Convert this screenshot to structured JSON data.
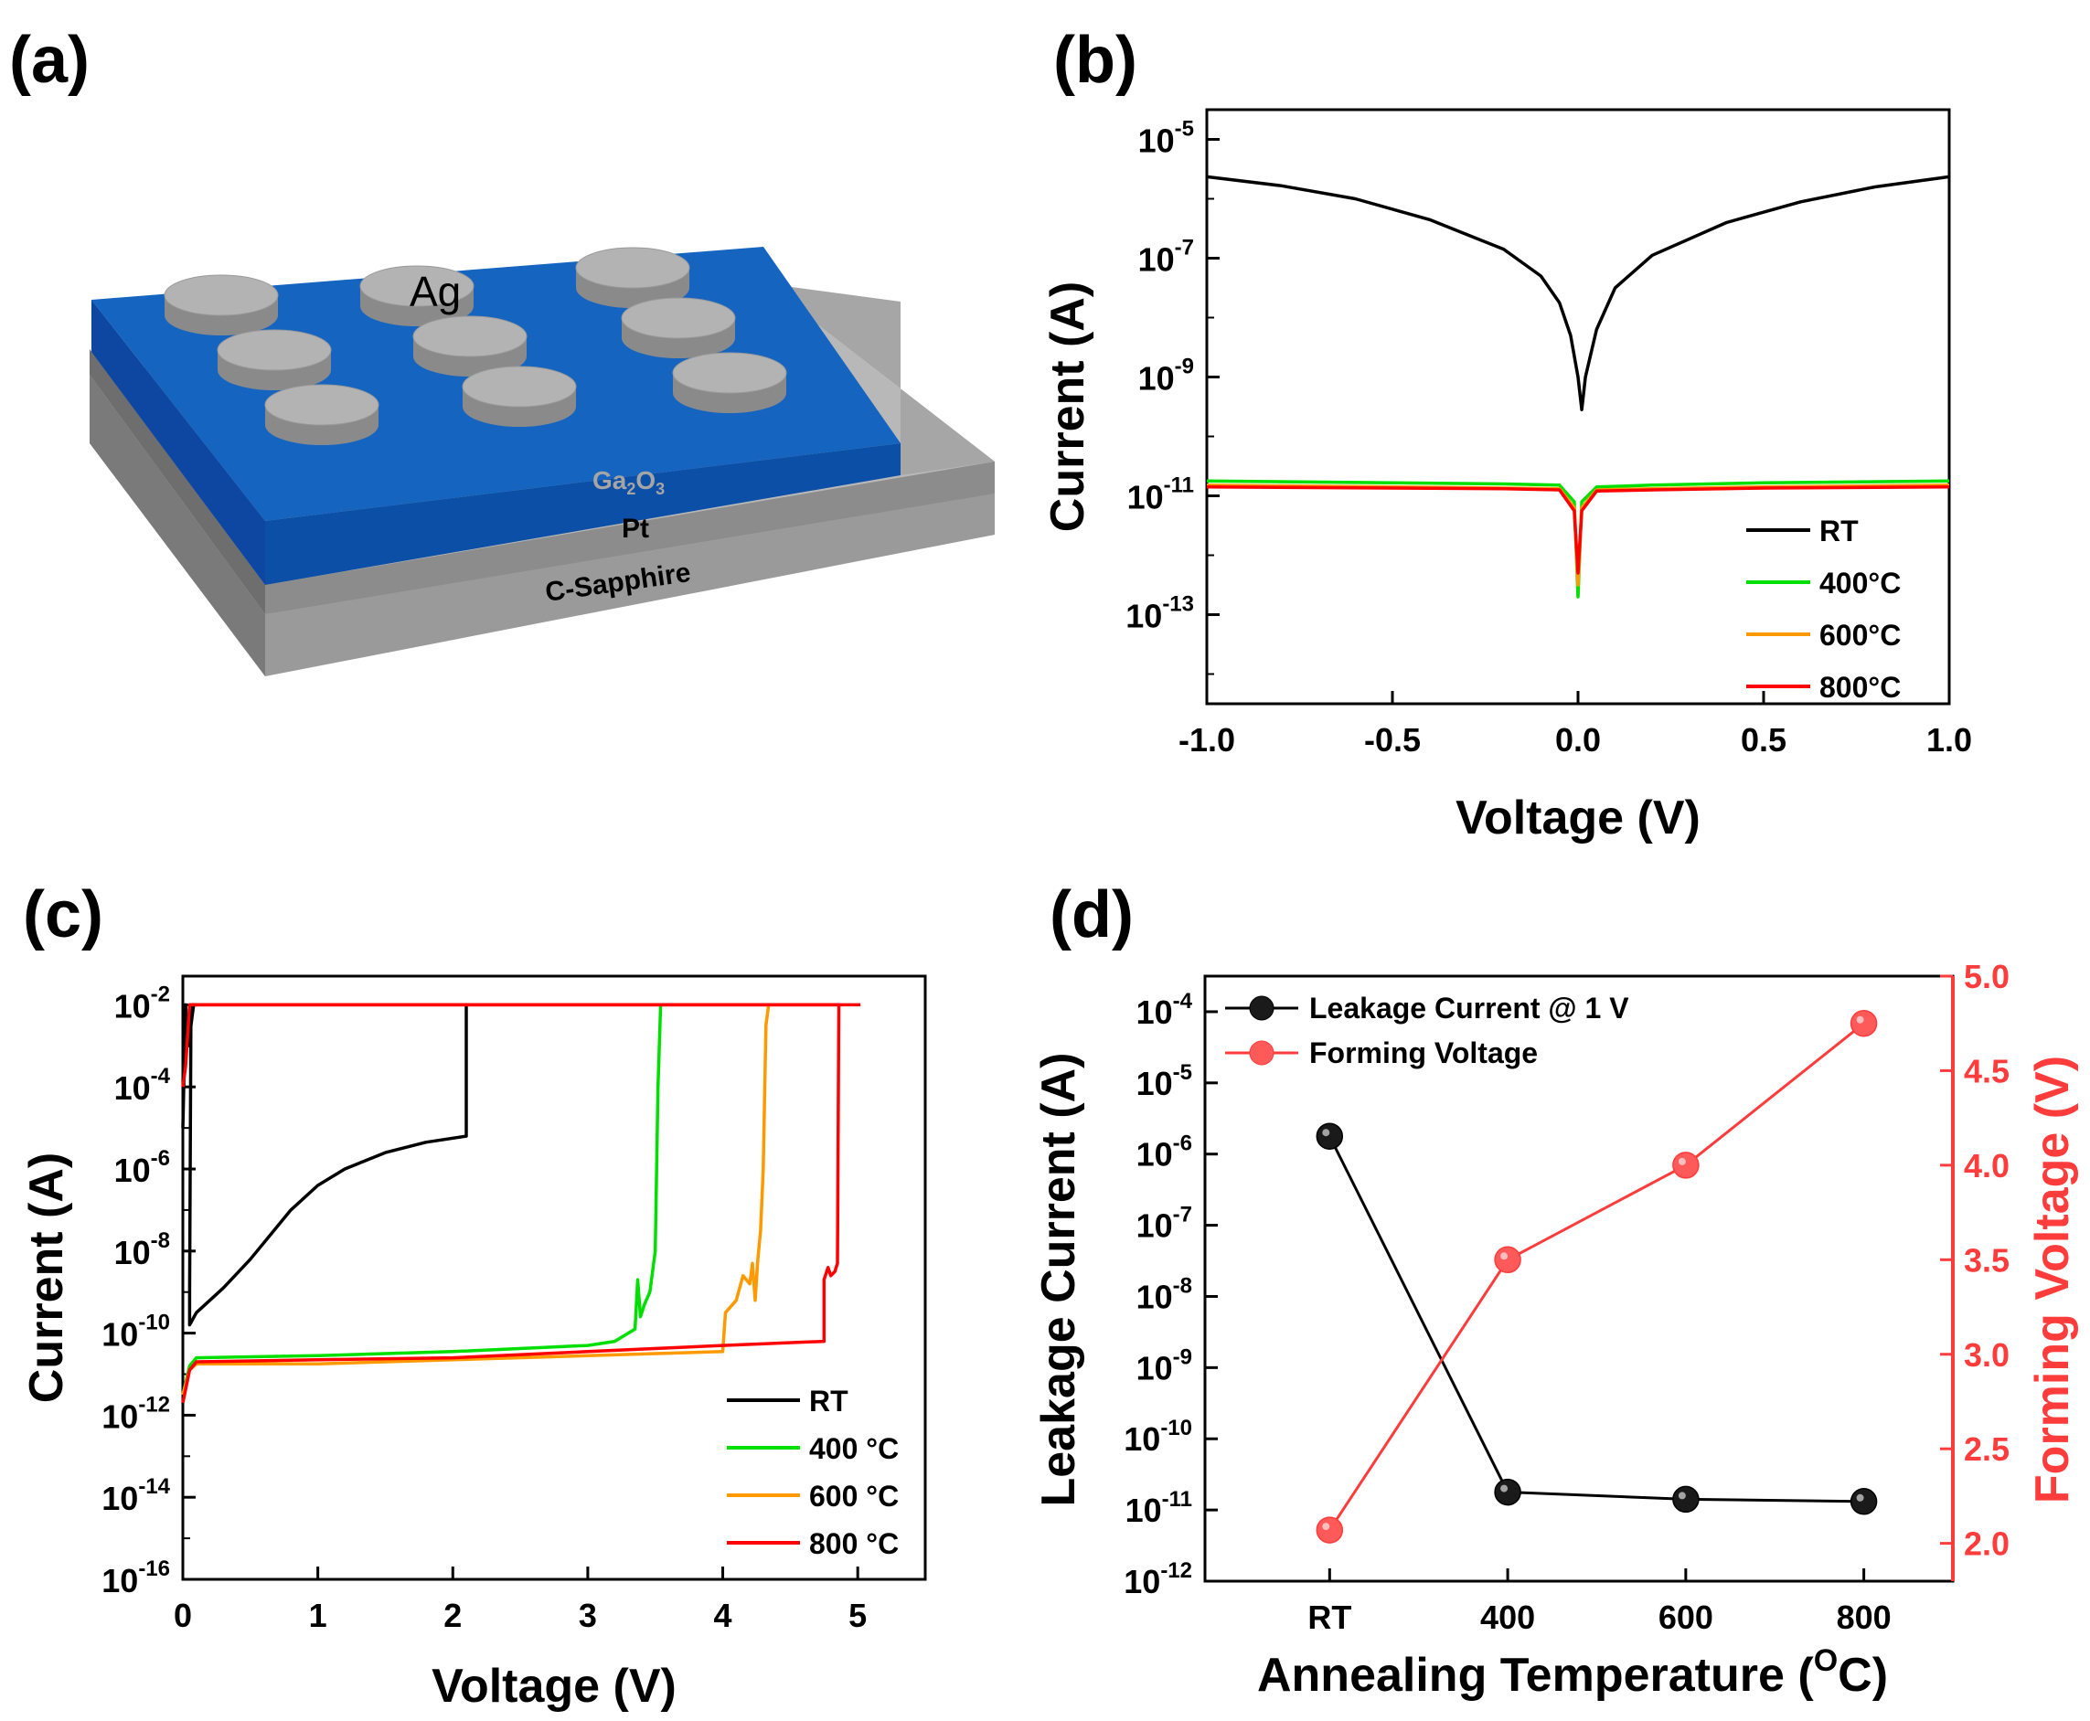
{
  "panel_labels": {
    "a": "(a)",
    "b": "(b)",
    "c": "(c)",
    "d": "(d)"
  },
  "diagram": {
    "electrode_label": "Ag",
    "layers": [
      {
        "name": "ga2o3",
        "label_main": "Ga",
        "sub1": "2",
        "mid": "O",
        "sub2": "3",
        "color": "#1565c0"
      },
      {
        "name": "pt",
        "label": "Pt",
        "color": "#8c8c8c"
      },
      {
        "name": "substrate",
        "label": "C-Sapphire",
        "color": "#9a9a9a"
      }
    ],
    "electrode_color": "#a9a9a9"
  },
  "colors": {
    "RT": "#000000",
    "T400": "#00e000",
    "T600": "#ff9900",
    "T800": "#ff0000",
    "right_axis": "#ff3c3c"
  },
  "chart_data": [
    {
      "panel": "b",
      "type": "line",
      "xlabel": "Voltage (V)",
      "ylabel": "Current (A)",
      "xlim": [
        -1.0,
        1.0
      ],
      "ylim_log10": [
        -14.5,
        -4.5
      ],
      "yscale": "log",
      "x_ticks": [
        "-1.0",
        "-0.5",
        "0.0",
        "0.5",
        "1.0"
      ],
      "x_tick_values": [
        -1.0,
        -0.5,
        0.0,
        0.5,
        1.0
      ],
      "y_ticks": [
        {
          "base": "10",
          "exp": "-5",
          "value": -5
        },
        {
          "base": "10",
          "exp": "-7",
          "value": -7
        },
        {
          "base": "10",
          "exp": "-9",
          "value": -9
        },
        {
          "base": "10",
          "exp": "-11",
          "value": -11
        },
        {
          "base": "10",
          "exp": "-13",
          "value": -13
        }
      ],
      "legend": [
        "RT",
        "400°C",
        "600°C",
        "800°C"
      ],
      "series": [
        {
          "name": "RT",
          "color": "#000000",
          "x": [
            -1.0,
            -0.8,
            -0.6,
            -0.4,
            -0.2,
            -0.1,
            -0.05,
            -0.02,
            0.0,
            0.01,
            0.02,
            0.05,
            0.1,
            0.2,
            0.4,
            0.6,
            0.8,
            1.0
          ],
          "log10y": [
            -5.63,
            -5.78,
            -6.0,
            -6.35,
            -6.85,
            -7.3,
            -7.75,
            -8.3,
            -9.0,
            -9.55,
            -9.0,
            -8.2,
            -7.5,
            -6.95,
            -6.4,
            -6.05,
            -5.8,
            -5.63
          ]
        },
        {
          "name": "400°C",
          "color": "#00e000",
          "x": [
            -1.0,
            -0.5,
            -0.2,
            -0.05,
            -0.01,
            0.0,
            0.01,
            0.05,
            0.2,
            0.5,
            1.0
          ],
          "log10y": [
            -10.75,
            -10.78,
            -10.8,
            -10.82,
            -11.1,
            -12.7,
            -11.1,
            -10.85,
            -10.82,
            -10.78,
            -10.75
          ]
        },
        {
          "name": "600°C",
          "color": "#ff9900",
          "x": [
            -1.0,
            -0.5,
            -0.2,
            -0.05,
            -0.01,
            0.0,
            0.01,
            0.05,
            0.2,
            0.5,
            1.0
          ],
          "log10y": [
            -10.82,
            -10.85,
            -10.87,
            -10.88,
            -11.2,
            -12.5,
            -11.2,
            -10.9,
            -10.88,
            -10.85,
            -10.82
          ]
        },
        {
          "name": "800°C",
          "color": "#ff0000",
          "x": [
            -1.0,
            -0.5,
            -0.2,
            -0.05,
            -0.01,
            0.0,
            0.01,
            0.05,
            0.2,
            0.5,
            1.0
          ],
          "log10y": [
            -10.85,
            -10.87,
            -10.88,
            -10.9,
            -11.25,
            -12.3,
            -11.25,
            -10.92,
            -10.9,
            -10.87,
            -10.85
          ]
        }
      ]
    },
    {
      "panel": "c",
      "type": "line",
      "xlabel": "Voltage (V)",
      "ylabel": "Current (A)",
      "xlim": [
        0,
        5.5
      ],
      "ylim_log10": [
        -16,
        -1.3
      ],
      "yscale": "log",
      "x_ticks": [
        "0",
        "1",
        "2",
        "3",
        "4",
        "5"
      ],
      "x_tick_values": [
        0,
        1,
        2,
        3,
        4,
        5
      ],
      "y_ticks": [
        {
          "base": "10",
          "exp": "-2",
          "value": -2
        },
        {
          "base": "10",
          "exp": "-4",
          "value": -4
        },
        {
          "base": "10",
          "exp": "-6",
          "value": -6
        },
        {
          "base": "10",
          "exp": "-8",
          "value": -8
        },
        {
          "base": "10",
          "exp": "-10",
          "value": -10
        },
        {
          "base": "10",
          "exp": "-12",
          "value": -12
        },
        {
          "base": "10",
          "exp": "-14",
          "value": -14
        },
        {
          "base": "10",
          "exp": "-16",
          "value": -16
        }
      ],
      "legend": [
        "RT",
        "400 °C",
        "600 °C",
        "800 °C"
      ],
      "series": [
        {
          "name": "RT",
          "color": "#000000",
          "x": [
            0.0,
            0.02,
            0.04,
            0.06,
            0.08,
            0.1,
            0.06,
            0.05,
            0.05,
            0.1,
            0.3,
            0.5,
            0.8,
            1.0,
            1.2,
            1.5,
            1.8,
            2.1,
            2.1,
            2.12
          ],
          "log10y": [
            -5.0,
            -2.0,
            -3.0,
            -2.5,
            -2.0,
            -2.0,
            -2.0,
            -9.0,
            -9.8,
            -9.5,
            -8.9,
            -8.2,
            -7.0,
            -6.4,
            -6.0,
            -5.6,
            -5.35,
            -5.2,
            -2.0,
            -2.0
          ]
        },
        {
          "name": "400 °C",
          "color": "#00e000",
          "x": [
            0.0,
            0.05,
            0.1,
            1.0,
            2.0,
            3.0,
            3.2,
            3.35,
            3.37,
            3.39,
            3.42,
            3.46,
            3.5,
            3.52,
            3.54
          ],
          "log10y": [
            -11.5,
            -10.8,
            -10.6,
            -10.55,
            -10.45,
            -10.3,
            -10.2,
            -9.9,
            -8.7,
            -9.6,
            -9.3,
            -9.0,
            -8.0,
            -4.0,
            -2.0
          ]
        },
        {
          "name": "600 °C",
          "color": "#ff9900",
          "x": [
            0.0,
            0.05,
            0.1,
            1.0,
            2.0,
            3.0,
            4.0,
            4.02,
            4.1,
            4.15,
            4.2,
            4.22,
            4.24,
            4.26,
            4.28,
            4.3,
            4.32,
            4.34
          ],
          "log10y": [
            -11.5,
            -10.9,
            -10.75,
            -10.75,
            -10.65,
            -10.55,
            -10.45,
            -9.5,
            -9.2,
            -8.6,
            -8.8,
            -8.3,
            -9.2,
            -8.2,
            -7.5,
            -6.0,
            -2.5,
            -2.0
          ]
        },
        {
          "name": "800 °C",
          "color": "#ff0000",
          "x": [
            0.0,
            0.05,
            0.1,
            1.0,
            2.0,
            3.0,
            4.0,
            4.75,
            4.75,
            4.78,
            4.8,
            4.83,
            4.85,
            4.86,
            4.85,
            0.05,
            0.02,
            0.0
          ],
          "log10y": [
            -11.7,
            -10.9,
            -10.7,
            -10.65,
            -10.6,
            -10.45,
            -10.3,
            -10.2,
            -8.7,
            -8.4,
            -8.6,
            -8.5,
            -8.3,
            -2.0,
            -2.0,
            -2.0,
            -3.5,
            -4.0
          ]
        },
        {
          "name": "compliance",
          "color": "#ff0000",
          "x": [
            0.05,
            5.02
          ],
          "log10y": [
            -2.0,
            -2.0
          ]
        }
      ]
    },
    {
      "panel": "d",
      "type": "scatter",
      "xlabel": "Annealing Temperature (",
      "xlabel_sup": "O",
      "xlabel_end": "C)",
      "ylabel": "Leakage Current (A)",
      "ylabel_right": "Forming Voltage (V)",
      "categories": [
        "RT",
        "400",
        "600",
        "800"
      ],
      "x_positions": [
        1,
        2,
        3,
        4
      ],
      "xlim": [
        0.3,
        4.5
      ],
      "ylim_log10": [
        -12,
        -3.5
      ],
      "ylim_right": [
        1.8,
        5.0
      ],
      "y_ticks": [
        {
          "base": "10",
          "exp": "-4",
          "value": -4
        },
        {
          "base": "10",
          "exp": "-5",
          "value": -5
        },
        {
          "base": "10",
          "exp": "-6",
          "value": -6
        },
        {
          "base": "10",
          "exp": "-7",
          "value": -7
        },
        {
          "base": "10",
          "exp": "-8",
          "value": -8
        },
        {
          "base": "10",
          "exp": "-9",
          "value": -9
        },
        {
          "base": "10",
          "exp": "-10",
          "value": -10
        },
        {
          "base": "10",
          "exp": "-11",
          "value": -11
        },
        {
          "base": "10",
          "exp": "-12",
          "value": -12
        }
      ],
      "y_ticks_right": [
        "2.0",
        "2.5",
        "3.0",
        "3.5",
        "4.0",
        "4.5",
        "5.0"
      ],
      "y_tick_values_right": [
        2.0,
        2.5,
        3.0,
        3.5,
        4.0,
        4.5,
        5.0
      ],
      "legend": [
        "Leakage Current @ 1 V",
        "Forming Voltage"
      ],
      "series": [
        {
          "name": "Leakage Current @ 1 V",
          "color": "#000000",
          "axis": "left",
          "log10y": [
            -5.75,
            -10.75,
            -10.85,
            -10.88
          ]
        },
        {
          "name": "Forming Voltage",
          "color": "#ff3c3c",
          "axis": "right",
          "values": [
            2.07,
            3.5,
            4.0,
            4.75
          ]
        }
      ]
    }
  ]
}
